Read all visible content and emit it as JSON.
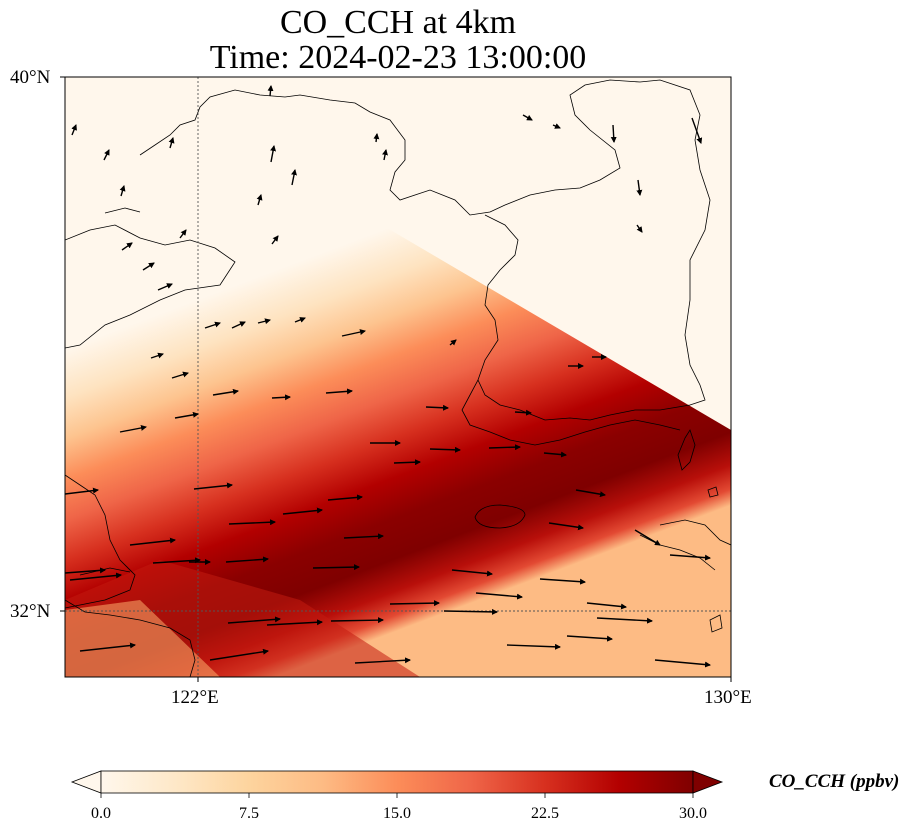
{
  "title": {
    "line1": "CO_CCH at 4km",
    "line2": "Time: 2024-02-23 13:00:00"
  },
  "axes": {
    "lat_ticks": [
      "40°N",
      "32°N"
    ],
    "lon_ticks": [
      "122°E",
      "130°E"
    ]
  },
  "colorbar": {
    "label": "CO_CCH (ppbv)",
    "ticks": [
      "0.0",
      "7.5",
      "15.0",
      "22.5",
      "30.0"
    ],
    "range": [
      0,
      30
    ],
    "colormap": "OrRd",
    "extend": "both"
  },
  "map": {
    "field": "CO_CCH",
    "level": "4km",
    "lon_range": [
      120,
      130
    ],
    "lat_range": [
      31,
      40
    ],
    "gridlines": [
      {
        "lon": 122
      },
      {
        "lat": 32
      }
    ],
    "overlay": "wind vectors"
  }
}
